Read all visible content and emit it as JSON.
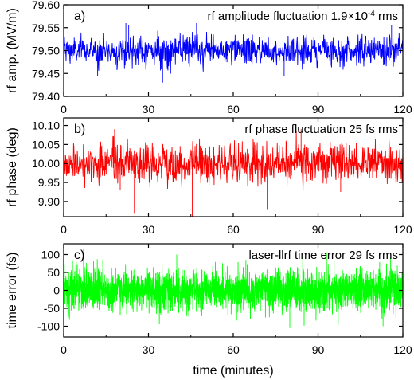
{
  "chart_data": [
    {
      "type": "line",
      "panel_tag": "a)",
      "title": "rf amplitude fluctuation 1.9×10",
      "title_exponent": "-4",
      "title_suffix": " rms",
      "ylabel": "rf amp. (MV/m)",
      "xlabel": "",
      "xlim": [
        0,
        120
      ],
      "ylim": [
        79.4,
        79.6
      ],
      "xticks": [
        "0",
        "30",
        "60",
        "90",
        "120"
      ],
      "yticks": [
        "79.40",
        "79.45",
        "79.50",
        "79.55",
        "79.60"
      ],
      "color": "#0000ff",
      "series": [
        {
          "mean": 79.5,
          "noise_sigma": 0.016,
          "points": 1000,
          "spikes": [
            [
              22,
              79.56
            ],
            [
              23,
              79.555
            ],
            [
              12,
              79.445
            ],
            [
              35,
              79.43
            ],
            [
              47,
              79.56
            ],
            [
              78,
              79.445
            ],
            [
              116,
              79.555
            ]
          ]
        }
      ]
    },
    {
      "type": "line",
      "panel_tag": "b)",
      "title": "rf phase fluctuation 25 fs rms",
      "ylabel": "rf phase (deg)",
      "xlabel": "",
      "xlim": [
        0,
        120
      ],
      "ylim": [
        9.86,
        10.12
      ],
      "xticks": [
        "0",
        "30",
        "60",
        "90",
        "120"
      ],
      "yticks": [
        "9.90",
        "9.95",
        "10.00",
        "10.05",
        "10.10"
      ],
      "color": "#ff0000",
      "series": [
        {
          "mean": 10.0,
          "noise_sigma": 0.027,
          "points": 1000,
          "spikes": [
            [
              18,
              10.09
            ],
            [
              25,
              9.87
            ],
            [
              45.5,
              9.86
            ],
            [
              72,
              9.88
            ],
            [
              84,
              10.09
            ],
            [
              98,
              9.925
            ],
            [
              20,
              9.93
            ]
          ]
        }
      ]
    },
    {
      "type": "line",
      "panel_tag": "c)",
      "title": "laser-llrf time error 29 fs rms",
      "ylabel": "time error (fs)",
      "xlabel": "time (minutes)",
      "xlim": [
        0,
        120
      ],
      "ylim": [
        -130,
        130
      ],
      "xticks": [
        "0",
        "30",
        "60",
        "90",
        "120"
      ],
      "yticks": [
        "-100",
        "-50",
        "0",
        "50",
        "100"
      ],
      "color": "#00ff00",
      "series": [
        {
          "mean": 0,
          "noise_sigma": 29,
          "points": 3000,
          "spikes": [
            [
              7,
              115
            ],
            [
              10,
              -120
            ],
            [
              40,
              100
            ],
            [
              80,
              -105
            ],
            [
              93,
              105
            ],
            [
              113,
              -100
            ]
          ]
        }
      ]
    }
  ]
}
